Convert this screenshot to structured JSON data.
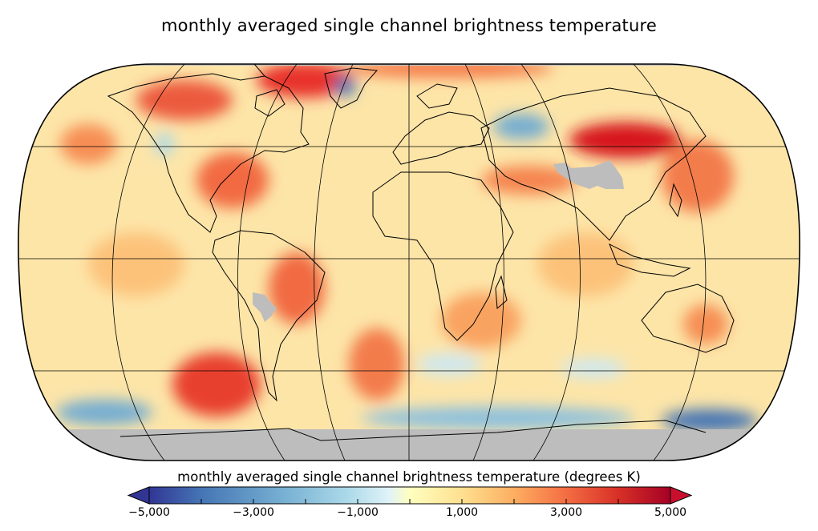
{
  "title": "monthly averaged single channel brightness temperature",
  "colorbar": {
    "label": "monthly averaged single channel brightness temperature (degrees K)",
    "min": -5000,
    "max": 5000,
    "extend": "both",
    "ticks": [
      "−5,000",
      "−3,000",
      "−1,000",
      "1,000",
      "3,000",
      "5,000"
    ],
    "tick_values": [
      -5000,
      -3000,
      -1000,
      1000,
      3000,
      5000
    ],
    "colors": [
      "#313695",
      "#4575b4",
      "#74add1",
      "#abd9e9",
      "#e0f3f8",
      "#ffffbf",
      "#fee090",
      "#fdae61",
      "#f46d43",
      "#d73027",
      "#a50026"
    ],
    "under_color": "#313695",
    "over_color": "#c8102e"
  },
  "map": {
    "projection": "Robinson",
    "missing_color": "#bdbdbd",
    "background_color": "#fde3a0"
  }
}
